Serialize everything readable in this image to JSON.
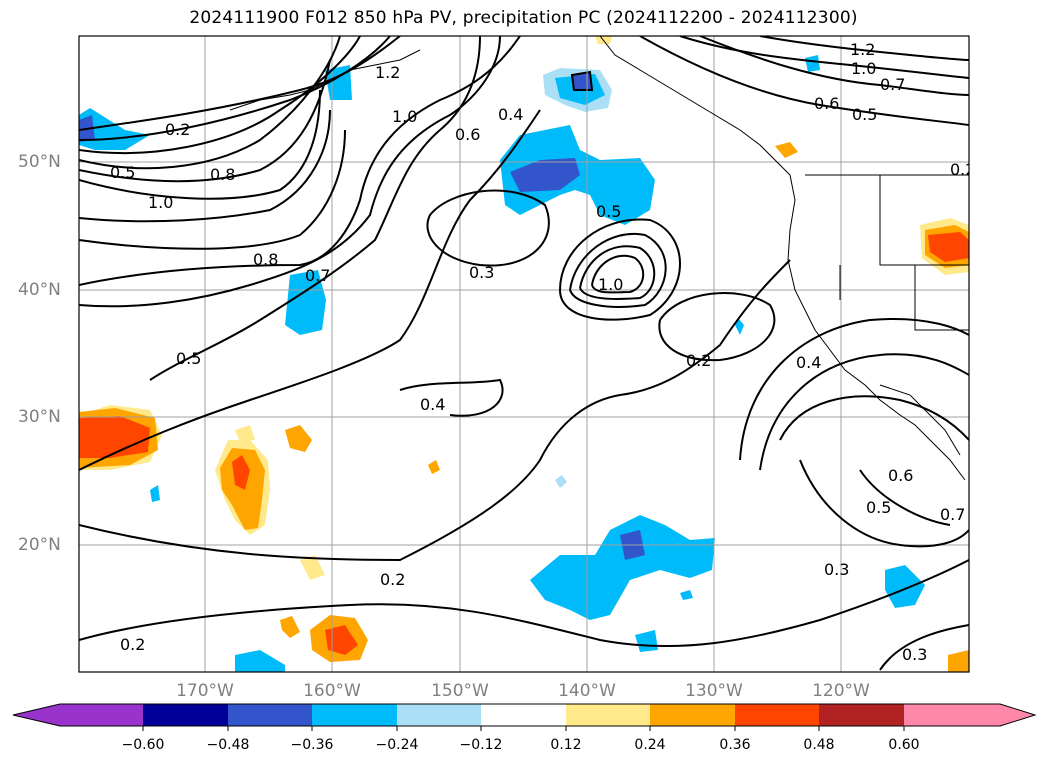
{
  "title": "2024111900 F012 850 hPa PV, precipitation PC (2024112200 - 2024112300)",
  "lat_labels": [
    "50°N",
    "40°N",
    "30°N",
    "20°N"
  ],
  "lon_labels": [
    "170°W",
    "160°W",
    "150°W",
    "140°W",
    "130°W",
    "120°W"
  ],
  "contour_labels": [
    "0.2",
    "0.3",
    "0.4",
    "0.5",
    "0.6",
    "0.7",
    "0.8",
    "1.0",
    "1.2"
  ],
  "colorbar": {
    "ticks": [
      "−0.60",
      "−0.48",
      "−0.36",
      "−0.24",
      "−0.12",
      "0.12",
      "0.24",
      "0.36",
      "0.48",
      "0.60"
    ],
    "colors": [
      "#9933cc",
      "#000099",
      "#3355cc",
      "#00bbf9",
      "#aadff5",
      "#ffffff",
      "#ffe98a",
      "#ffa500",
      "#ff4500",
      "#b22222",
      "#ff88aa"
    ]
  }
}
